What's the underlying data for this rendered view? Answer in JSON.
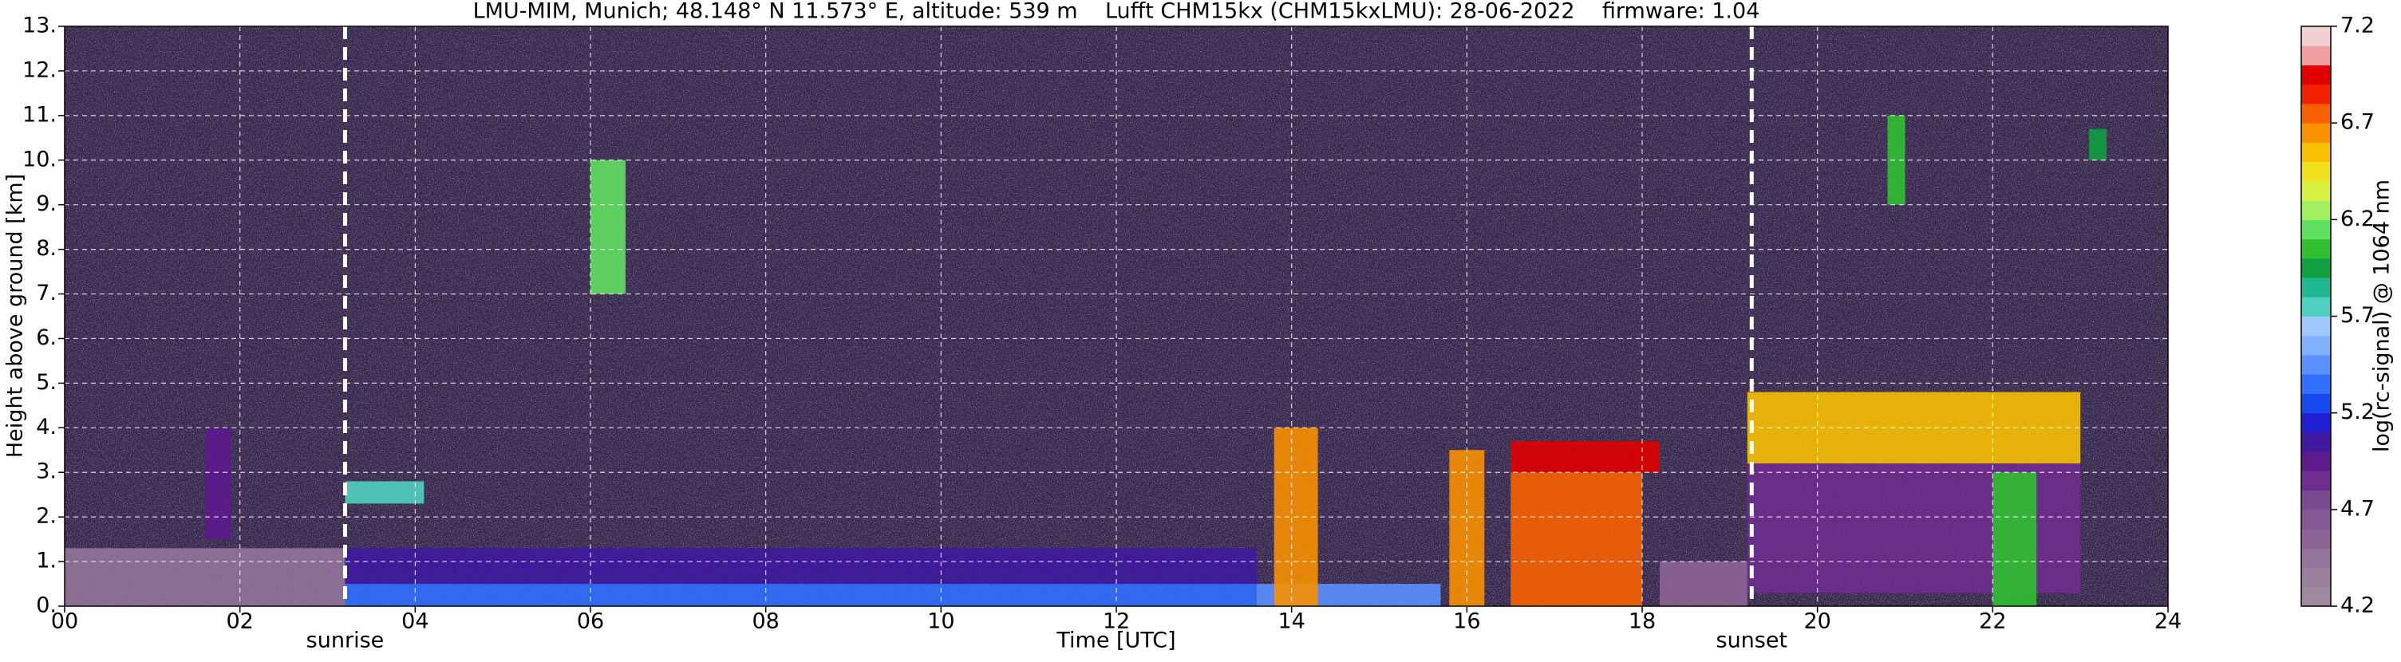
{
  "chart_data": {
    "type": "heatmap",
    "title": "LMU-MIM, Munich; 48.148° N 11.573° E, altitude: 539 m    Lufft CHM15kx (CHM15kxLMU): 28-06-2022    firmware: 1.04",
    "x_label": "Time [UTC]",
    "y_label": "Height above ground [km]",
    "xlim": [
      0,
      24
    ],
    "xticks": [
      {
        "value": 0,
        "label": "00"
      },
      {
        "value": 2,
        "label": "02"
      },
      {
        "value": 4,
        "label": "04"
      },
      {
        "value": 6,
        "label": "06"
      },
      {
        "value": 8,
        "label": "08"
      },
      {
        "value": 10,
        "label": "10"
      },
      {
        "value": 12,
        "label": "12"
      },
      {
        "value": 14,
        "label": "14"
      },
      {
        "value": 16,
        "label": "16"
      },
      {
        "value": 18,
        "label": "18"
      },
      {
        "value": 20,
        "label": "20"
      },
      {
        "value": 22,
        "label": "22"
      },
      {
        "value": 24,
        "label": "24"
      }
    ],
    "ylim": [
      0,
      13
    ],
    "yticks": [
      {
        "value": 0,
        "label": "0."
      },
      {
        "value": 1,
        "label": "1."
      },
      {
        "value": 2,
        "label": "2."
      },
      {
        "value": 3,
        "label": "3."
      },
      {
        "value": 4,
        "label": "4."
      },
      {
        "value": 5,
        "label": "5."
      },
      {
        "value": 6,
        "label": "6."
      },
      {
        "value": 7,
        "label": "7."
      },
      {
        "value": 8,
        "label": "8."
      },
      {
        "value": 9,
        "label": "9."
      },
      {
        "value": 10,
        "label": "10."
      },
      {
        "value": 11,
        "label": "11."
      },
      {
        "value": 12,
        "label": "12."
      },
      {
        "value": 13,
        "label": "13."
      }
    ],
    "grid": true,
    "annotations": [
      {
        "label": "sunrise",
        "x": 3.2
      },
      {
        "label": "sunset",
        "x": 19.25
      }
    ],
    "colorbar": {
      "label": "log(rc-signal) @ 1064 nm",
      "lim": [
        4.2,
        7.2
      ],
      "ticks": [
        4.2,
        4.7,
        5.2,
        5.7,
        6.2,
        6.7,
        7.2
      ],
      "colors": [
        "#a08aa0",
        "#9a7f9c",
        "#93749a",
        "#8c6496",
        "#845893",
        "#7a4a92",
        "#6e2e8e",
        "#5c1a8c",
        "#3f1a9e",
        "#2020d0",
        "#1848f0",
        "#3070ff",
        "#5a90ff",
        "#80b0ff",
        "#9ec8ff",
        "#50d0c0",
        "#20b890",
        "#10a040",
        "#30c030",
        "#60e060",
        "#a0f060",
        "#d8f040",
        "#f0e020",
        "#f8c000",
        "#f89000",
        "#f86000",
        "#f02000",
        "#e00000",
        "#f0a0a0",
        "#f0d0d0"
      ]
    },
    "regions": [
      {
        "x0": 0,
        "x1": 3.2,
        "y0": 0,
        "y1": 1.3,
        "value": 4.5
      },
      {
        "x0": 3.2,
        "x1": 13.6,
        "y0": 0,
        "y1": 0.5,
        "value": 5.35
      },
      {
        "x0": 3.2,
        "x1": 13.6,
        "y0": 0.5,
        "y1": 1.3,
        "value": 5.05
      },
      {
        "x0": 1.6,
        "x1": 1.9,
        "y0": 1.5,
        "y1": 4,
        "value": 4.95
      },
      {
        "x0": 3.2,
        "x1": 4.1,
        "y0": 2.3,
        "y1": 2.8,
        "value": 5.75
      },
      {
        "x0": 13.6,
        "x1": 15.7,
        "y0": 0,
        "y1": 0.5,
        "value": 5.4
      },
      {
        "x0": 13.8,
        "x1": 14.3,
        "y0": 0,
        "y1": 4,
        "value": 6.65
      },
      {
        "x0": 15.8,
        "x1": 16.2,
        "y0": 0,
        "y1": 3.5,
        "value": 6.65
      },
      {
        "x0": 16.5,
        "x1": 18,
        "y0": 0,
        "y1": 3,
        "value": 6.75
      },
      {
        "x0": 16.5,
        "x1": 18.2,
        "y0": 3,
        "y1": 3.7,
        "value": 7.0
      },
      {
        "x0": 18.2,
        "x1": 19.2,
        "y0": 0,
        "y1": 1,
        "value": 4.55
      },
      {
        "x0": 19.2,
        "x1": 23,
        "y0": 0.3,
        "y1": 3.2,
        "value": 4.85
      },
      {
        "x0": 19.2,
        "x1": 23,
        "y0": 3.2,
        "y1": 4.8,
        "value": 6.55
      },
      {
        "x0": 22,
        "x1": 22.5,
        "y0": 0,
        "y1": 3,
        "value": 6.05
      },
      {
        "x0": 20.8,
        "x1": 21,
        "y0": 9,
        "y1": 11,
        "value": 6.05
      },
      {
        "x0": 23.1,
        "x1": 23.3,
        "y0": 10,
        "y1": 10.7,
        "value": 5.95
      },
      {
        "x0": 6,
        "x1": 6.4,
        "y0": 7,
        "y1": 10,
        "value": 6.15
      }
    ]
  }
}
